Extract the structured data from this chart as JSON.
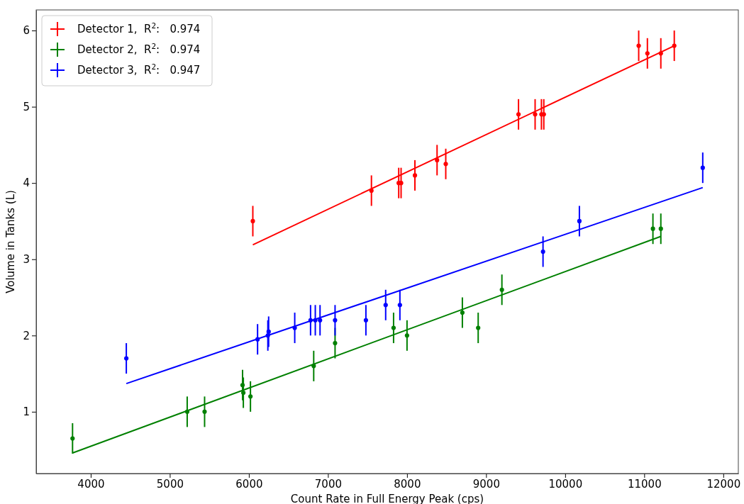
{
  "chart_data": {
    "type": "scatter",
    "xlabel": "Count Rate in Full Energy Peak (cps)",
    "ylabel": "Volume in Tanks (L)",
    "xlim": [
      3310,
      12190
    ],
    "ylim": [
      0.19,
      6.27
    ],
    "xticks": [
      4000,
      5000,
      6000,
      7000,
      8000,
      9000,
      10000,
      11000,
      12000
    ],
    "yticks": [
      1,
      2,
      3,
      4,
      5,
      6
    ],
    "grid": false,
    "legend": "top left",
    "marker": "circle",
    "series": [
      {
        "name": "Detector 1,  R$^{2}$:   0.974",
        "color": "#ff0000",
        "x": [
          6050,
          7550,
          7895,
          7925,
          8100,
          8380,
          8490,
          9410,
          9620,
          9700,
          9730,
          10930,
          11040,
          11210,
          11380
        ],
        "values": [
          3.5,
          3.9,
          4.0,
          4.0,
          4.1,
          4.3,
          4.25,
          4.9,
          4.9,
          4.9,
          4.9,
          5.8,
          5.7,
          5.7,
          5.8
        ],
        "errors": [
          0.2,
          0.2,
          0.2,
          0.2,
          0.2,
          0.2,
          0.2,
          0.2,
          0.2,
          0.2,
          0.2,
          0.2,
          0.2,
          0.2,
          0.2
        ]
      },
      {
        "name": "Detector 2,  R$^{2}$:   0.974",
        "color": "#008000",
        "x": [
          3770,
          5220,
          5440,
          5920,
          5930,
          6020,
          6820,
          7090,
          7830,
          8000,
          8700,
          8900,
          9200,
          11110,
          11210
        ],
        "values": [
          0.65,
          1.0,
          1.0,
          1.35,
          1.25,
          1.2,
          1.6,
          1.9,
          2.1,
          2.0,
          2.3,
          2.1,
          2.6,
          3.4,
          3.4
        ],
        "errors": [
          0.2,
          0.2,
          0.2,
          0.2,
          0.2,
          0.2,
          0.2,
          0.2,
          0.2,
          0.2,
          0.2,
          0.2,
          0.2,
          0.2,
          0.2
        ]
      },
      {
        "name": "Detector 3,  R$^{2}$:   0.947",
        "color": "#0000ff",
        "x": [
          4450,
          6110,
          6240,
          6250,
          6580,
          6780,
          6840,
          6900,
          7090,
          7480,
          7730,
          7910,
          9720,
          10180,
          11740
        ],
        "values": [
          1.7,
          1.95,
          2.0,
          2.05,
          2.1,
          2.2,
          2.2,
          2.2,
          2.2,
          2.2,
          2.4,
          2.4,
          3.1,
          3.5,
          4.2
        ],
        "errors": [
          0.2,
          0.2,
          0.2,
          0.2,
          0.2,
          0.2,
          0.2,
          0.2,
          0.2,
          0.2,
          0.2,
          0.2,
          0.2,
          0.2,
          0.2
        ]
      },
      {
        "type": "line",
        "marker": "none",
        "color": "#ff0000",
        "x": [
          6050,
          11380
        ],
        "values": [
          3.19,
          5.8
        ]
      },
      {
        "type": "line",
        "marker": "none",
        "color": "#008000",
        "x": [
          3770,
          11210
        ],
        "values": [
          0.46,
          3.3
        ]
      },
      {
        "type": "line",
        "marker": "none",
        "color": "#0000ff",
        "x": [
          4450,
          11740
        ],
        "values": [
          1.37,
          3.94
        ]
      }
    ]
  }
}
